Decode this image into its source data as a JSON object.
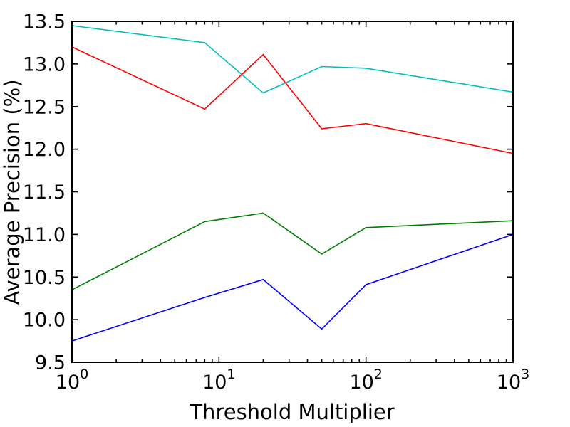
{
  "figure": {
    "background_color": "#ffffff",
    "spine_color": "#000000"
  },
  "chart_data": {
    "type": "line",
    "xlabel": "Threshold Multiplier",
    "ylabel": "Average Precision (%)",
    "xscale": "log",
    "xlim": [
      1,
      1000
    ],
    "ylim": [
      9.5,
      13.5
    ],
    "grid": false,
    "legend": "none",
    "x": [
      1,
      8,
      20,
      50,
      100,
      1000
    ],
    "series": [
      {
        "name": "cyan",
        "color": "#00bfbf",
        "values": [
          13.45,
          13.25,
          12.66,
          12.97,
          12.95,
          12.67
        ]
      },
      {
        "name": "red",
        "color": "#ff0000",
        "values": [
          13.2,
          12.47,
          13.11,
          12.24,
          12.3,
          11.95
        ]
      },
      {
        "name": "green",
        "color": "#008000",
        "values": [
          10.35,
          11.15,
          11.25,
          10.77,
          11.08,
          11.16
        ]
      },
      {
        "name": "blue",
        "color": "#0000ff",
        "values": [
          9.75,
          10.26,
          10.47,
          9.89,
          10.41,
          11.0
        ]
      }
    ],
    "xticks": [
      {
        "base": "10",
        "exp": "0",
        "value": 1
      },
      {
        "base": "10",
        "exp": "1",
        "value": 10
      },
      {
        "base": "10",
        "exp": "2",
        "value": 100
      },
      {
        "base": "10",
        "exp": "3",
        "value": 1000
      }
    ],
    "yticks": [
      {
        "label": "9.5",
        "value": 9.5
      },
      {
        "label": "10.0",
        "value": 10.0
      },
      {
        "label": "10.5",
        "value": 10.5
      },
      {
        "label": "11.0",
        "value": 11.0
      },
      {
        "label": "11.5",
        "value": 11.5
      },
      {
        "label": "12.0",
        "value": 12.0
      },
      {
        "label": "12.5",
        "value": 12.5
      },
      {
        "label": "13.0",
        "value": 13.0
      },
      {
        "label": "13.5",
        "value": 13.5
      }
    ]
  }
}
